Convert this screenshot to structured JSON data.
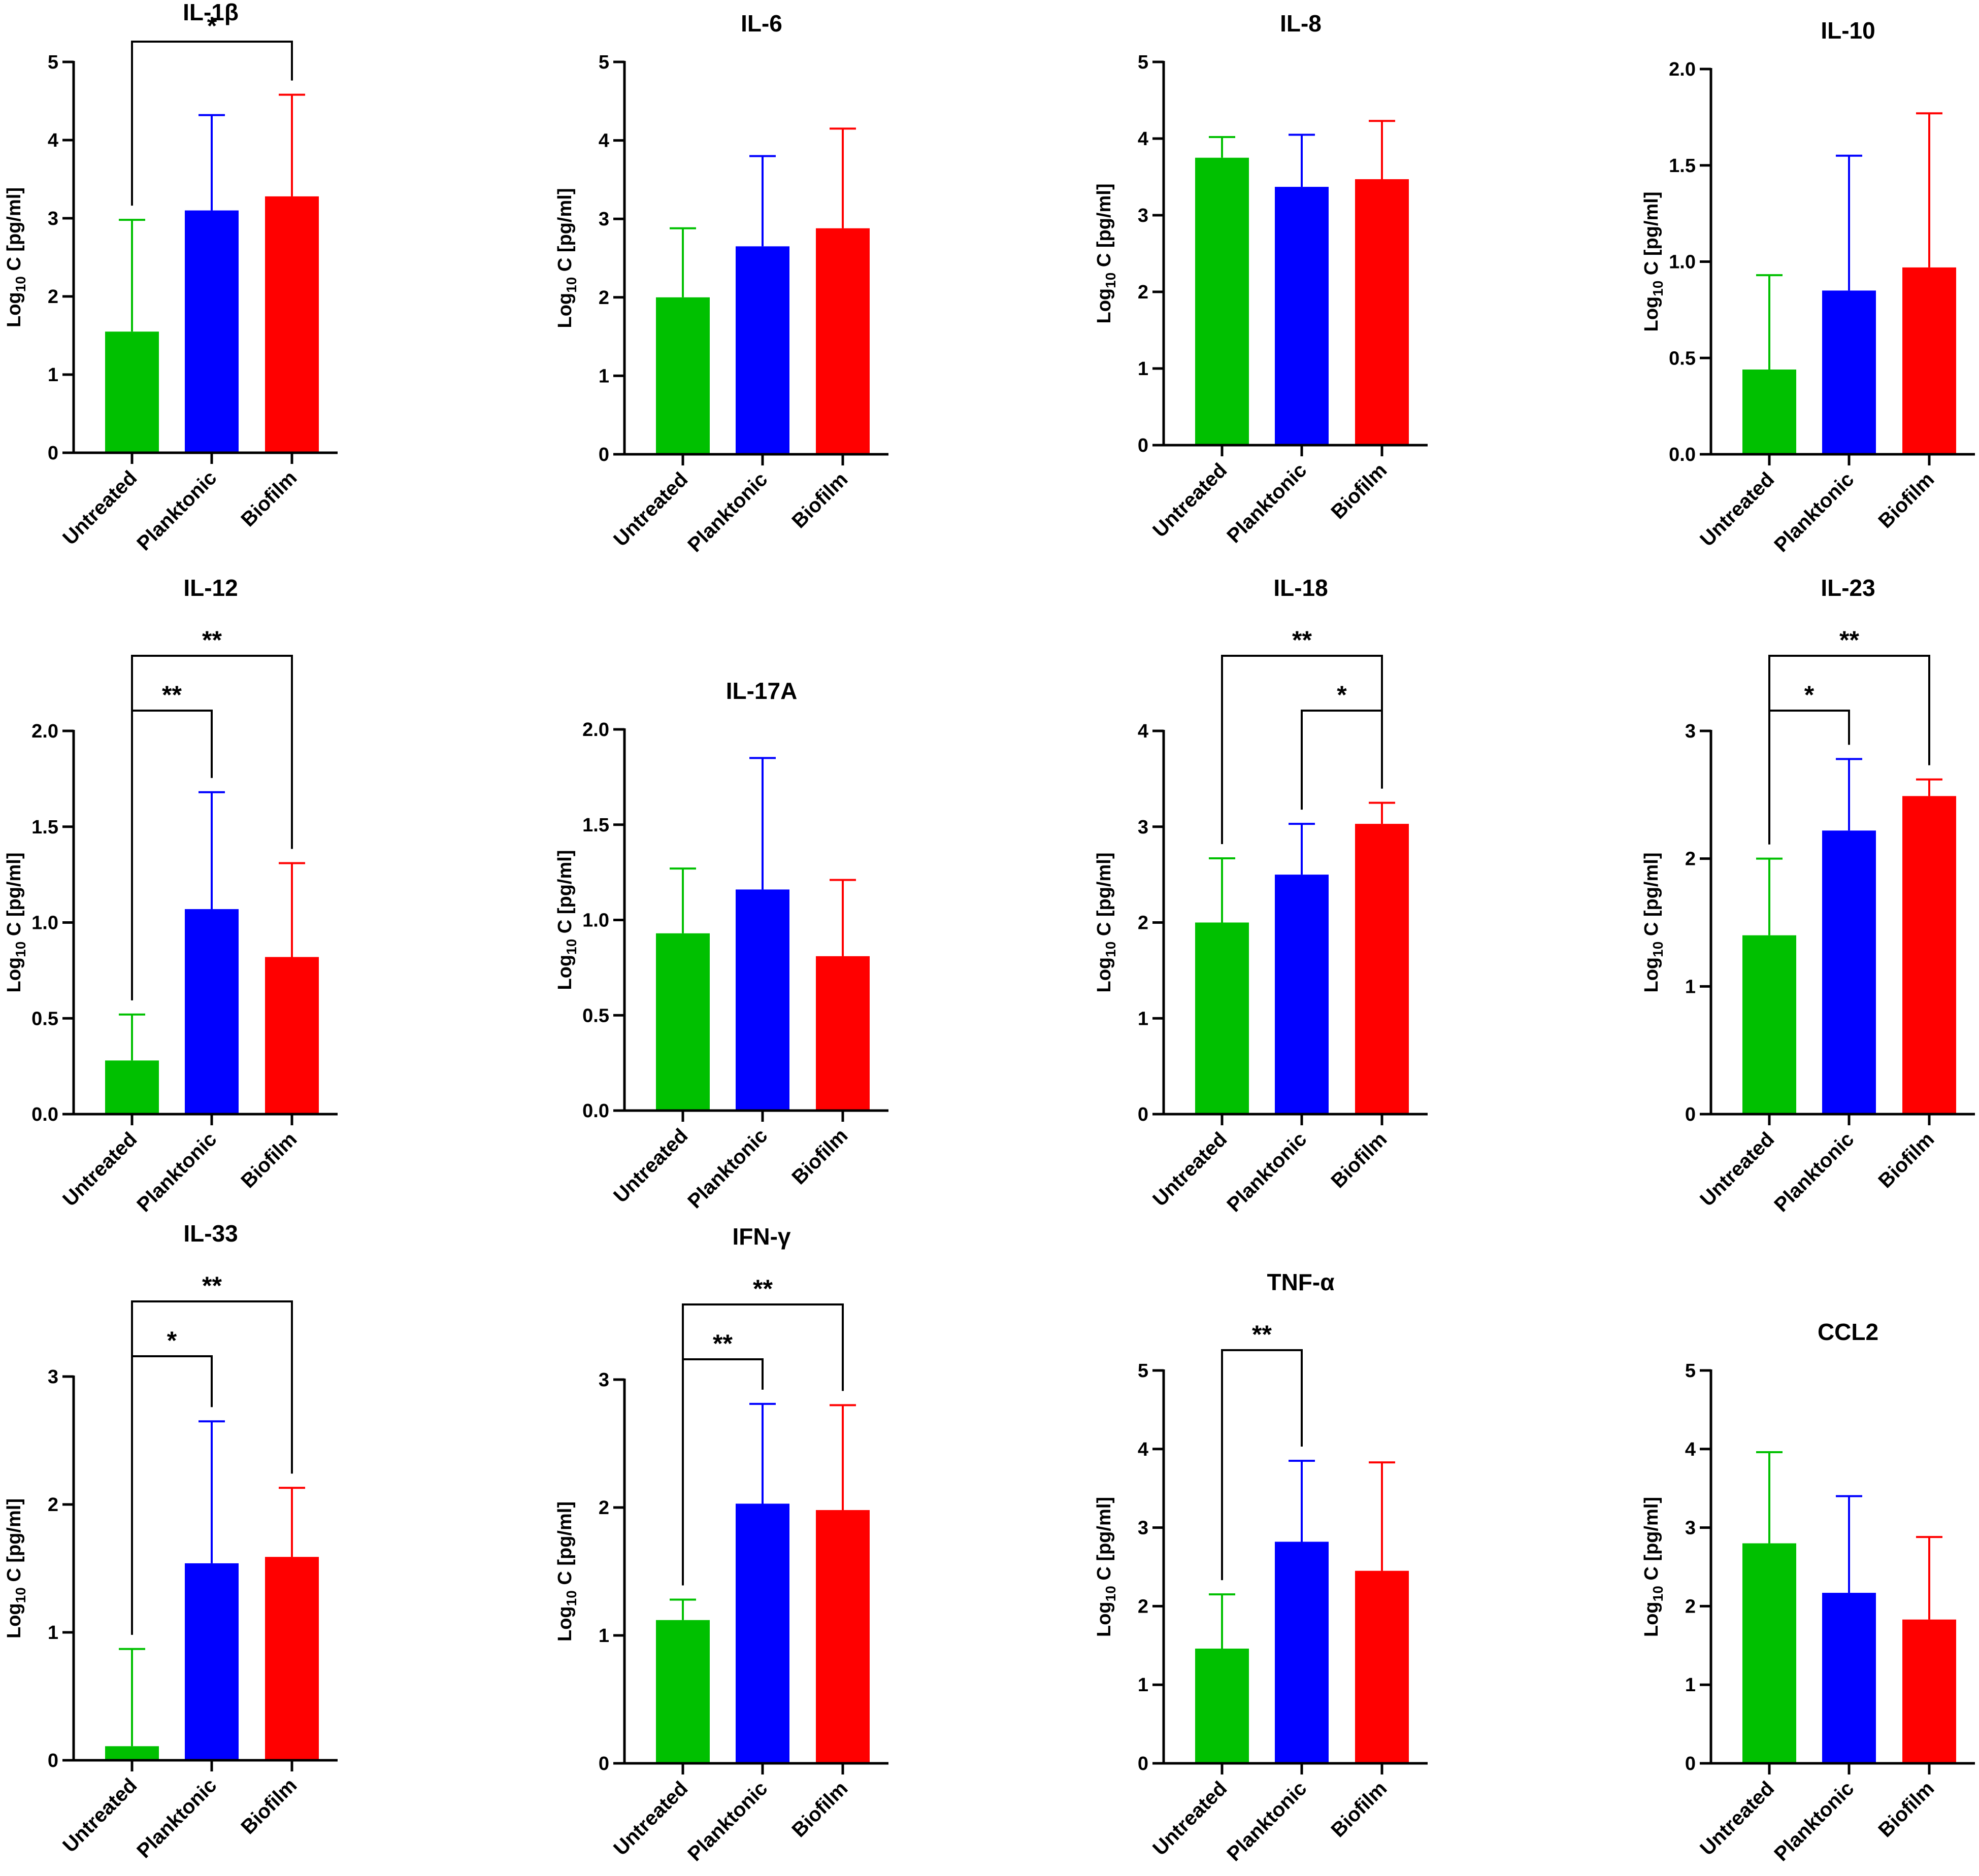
{
  "figure": {
    "series_colors": {
      "Untreated": "#00c000",
      "Planktonic": "#0000ff",
      "Biofilm": "#ff0000"
    }
  },
  "chart_data": [
    {
      "type": "bar",
      "title": "IL-1β",
      "categories": [
        "Untreated",
        "Planktonic",
        "Biofilm"
      ],
      "values": [
        1.55,
        3.1,
        3.28
      ],
      "errors_upper": [
        2.98,
        4.32,
        4.58
      ],
      "ylim": [
        0,
        5
      ],
      "yticks": [
        0,
        1,
        2,
        3,
        4,
        5
      ],
      "ytick_labels": [
        "0",
        "1",
        "2",
        "3",
        "4",
        "5"
      ],
      "ylabel_main": "Log",
      "ylabel_sub": "10",
      "ylabel_rest": " C [pg/ml]",
      "significance": [
        {
          "from": 0,
          "to": 2,
          "label": "*"
        }
      ]
    },
    {
      "type": "bar",
      "title": "IL-6",
      "categories": [
        "Untreated",
        "Planktonic",
        "Biofilm"
      ],
      "values": [
        2.0,
        2.65,
        2.88
      ],
      "errors_upper": [
        2.88,
        3.8,
        4.15
      ],
      "ylim": [
        0,
        5
      ],
      "yticks": [
        0,
        1,
        2,
        3,
        4,
        5
      ],
      "ytick_labels": [
        "0",
        "1",
        "2",
        "3",
        "4",
        "5"
      ],
      "ylabel_main": "Log",
      "ylabel_sub": "10",
      "ylabel_rest": " C [pg/ml]",
      "significance": []
    },
    {
      "type": "bar",
      "title": "IL-8",
      "categories": [
        "Untreated",
        "Planktonic",
        "Biofilm"
      ],
      "values": [
        3.75,
        3.37,
        3.47
      ],
      "errors_upper": [
        4.02,
        4.05,
        4.23
      ],
      "ylim": [
        0,
        5
      ],
      "yticks": [
        0,
        1,
        2,
        3,
        4,
        5
      ],
      "ytick_labels": [
        "0",
        "1",
        "2",
        "3",
        "4",
        "5"
      ],
      "ylabel_main": "Log",
      "ylabel_sub": "10",
      "ylabel_rest": " C [pg/ml]",
      "significance": []
    },
    {
      "type": "bar",
      "title": "IL-10",
      "categories": [
        "Untreated",
        "Planktonic",
        "Biofilm"
      ],
      "values": [
        0.44,
        0.85,
        0.97
      ],
      "errors_upper": [
        0.93,
        1.55,
        1.77
      ],
      "ylim": [
        0,
        2
      ],
      "yticks": [
        0,
        0.5,
        1,
        1.5,
        2
      ],
      "ytick_labels": [
        "0.0",
        "0.5",
        "1.0",
        "1.5",
        "2.0"
      ],
      "ylabel_main": "Log",
      "ylabel_sub": "10",
      "ylabel_rest": " C [pg/ml]",
      "significance": []
    },
    {
      "type": "bar",
      "title": "IL-12",
      "categories": [
        "Untreated",
        "Planktonic",
        "Biofilm"
      ],
      "values": [
        0.28,
        1.07,
        0.82
      ],
      "errors_upper": [
        0.52,
        1.68,
        1.31
      ],
      "ylim": [
        0,
        2
      ],
      "yticks": [
        0,
        0.5,
        1,
        1.5,
        2
      ],
      "ytick_labels": [
        "0.0",
        "0.5",
        "1.0",
        "1.5",
        "2.0"
      ],
      "ylabel_main": "Log",
      "ylabel_sub": "10",
      "ylabel_rest": " C [pg/ml]",
      "significance": [
        {
          "from": 0,
          "to": 1,
          "label": "**"
        },
        {
          "from": 0,
          "to": 2,
          "label": "**"
        }
      ]
    },
    {
      "type": "bar",
      "title": "IL-17A",
      "categories": [
        "Untreated",
        "Planktonic",
        "Biofilm"
      ],
      "values": [
        0.93,
        1.16,
        0.81
      ],
      "errors_upper": [
        1.27,
        1.85,
        1.21
      ],
      "ylim": [
        0,
        2
      ],
      "yticks": [
        0,
        0.5,
        1,
        1.5,
        2
      ],
      "ytick_labels": [
        "0.0",
        "0.5",
        "1.0",
        "1.5",
        "2.0"
      ],
      "ylabel_main": "Log",
      "ylabel_sub": "10",
      "ylabel_rest": " C [pg/ml]",
      "significance": []
    },
    {
      "type": "bar",
      "title": "IL-18",
      "categories": [
        "Untreated",
        "Planktonic",
        "Biofilm"
      ],
      "values": [
        2.0,
        2.5,
        3.03
      ],
      "errors_upper": [
        2.67,
        3.03,
        3.25
      ],
      "ylim": [
        0,
        4
      ],
      "yticks": [
        0,
        1,
        2,
        3,
        4
      ],
      "ytick_labels": [
        "0",
        "1",
        "2",
        "3",
        "4"
      ],
      "ylabel_main": "Log",
      "ylabel_sub": "10",
      "ylabel_rest": " C [pg/ml]",
      "significance": [
        {
          "from": 1,
          "to": 2,
          "label": "*"
        },
        {
          "from": 0,
          "to": 2,
          "label": "**"
        }
      ]
    },
    {
      "type": "bar",
      "title": "IL-23",
      "categories": [
        "Untreated",
        "Planktonic",
        "Biofilm"
      ],
      "values": [
        1.4,
        2.22,
        2.49
      ],
      "errors_upper": [
        2.0,
        2.78,
        2.62
      ],
      "ylim": [
        0,
        3
      ],
      "yticks": [
        0,
        1,
        2,
        3
      ],
      "ytick_labels": [
        "0",
        "1",
        "2",
        "3"
      ],
      "ylabel_main": "Log",
      "ylabel_sub": "10",
      "ylabel_rest": " C [pg/ml]",
      "significance": [
        {
          "from": 0,
          "to": 1,
          "label": "*"
        },
        {
          "from": 0,
          "to": 2,
          "label": "**"
        }
      ]
    },
    {
      "type": "bar",
      "title": "IL-33",
      "categories": [
        "Untreated",
        "Planktonic",
        "Biofilm"
      ],
      "values": [
        0.11,
        1.54,
        1.59
      ],
      "errors_upper": [
        0.87,
        2.65,
        2.13
      ],
      "ylim": [
        0,
        3
      ],
      "yticks": [
        0,
        1,
        2,
        3
      ],
      "ytick_labels": [
        "0",
        "1",
        "2",
        "3"
      ],
      "ylabel_main": "Log",
      "ylabel_sub": "10",
      "ylabel_rest": " C [pg/ml]",
      "significance": [
        {
          "from": 0,
          "to": 1,
          "label": "*"
        },
        {
          "from": 0,
          "to": 2,
          "label": "**"
        }
      ]
    },
    {
      "type": "bar",
      "title": "IFN-γ",
      "categories": [
        "Untreated",
        "Planktonic",
        "Biofilm"
      ],
      "values": [
        1.12,
        2.03,
        1.98
      ],
      "errors_upper": [
        1.28,
        2.81,
        2.8
      ],
      "ylim": [
        0,
        3
      ],
      "yticks": [
        0,
        1,
        2,
        3
      ],
      "ytick_labels": [
        "0",
        "1",
        "2",
        "3"
      ],
      "ylabel_main": "Log",
      "ylabel_sub": "10",
      "ylabel_rest": " C [pg/ml]",
      "significance": [
        {
          "from": 0,
          "to": 1,
          "label": "**"
        },
        {
          "from": 0,
          "to": 2,
          "label": "**"
        }
      ]
    },
    {
      "type": "bar",
      "title": "TNF-α",
      "categories": [
        "Untreated",
        "Planktonic",
        "Biofilm"
      ],
      "values": [
        1.46,
        2.82,
        2.45
      ],
      "errors_upper": [
        2.15,
        3.85,
        3.83
      ],
      "ylim": [
        0,
        5
      ],
      "yticks": [
        0,
        1,
        2,
        3,
        4,
        5
      ],
      "ytick_labels": [
        "0",
        "1",
        "2",
        "3",
        "4",
        "5"
      ],
      "ylabel_main": "Log",
      "ylabel_sub": "10",
      "ylabel_rest": " C [pg/ml]",
      "significance": [
        {
          "from": 0,
          "to": 1,
          "label": "**"
        }
      ]
    },
    {
      "type": "bar",
      "title": "CCL2",
      "categories": [
        "Untreated",
        "Planktonic",
        "Biofilm"
      ],
      "values": [
        2.8,
        2.17,
        1.83
      ],
      "errors_upper": [
        3.96,
        3.4,
        2.88
      ],
      "ylim": [
        0,
        5
      ],
      "yticks": [
        0,
        1,
        2,
        3,
        4,
        5
      ],
      "ytick_labels": [
        "0",
        "1",
        "2",
        "3",
        "4",
        "5"
      ],
      "ylabel_main": "Log",
      "ylabel_sub": "10",
      "ylabel_rest": " C [pg/ml]",
      "significance": []
    }
  ]
}
